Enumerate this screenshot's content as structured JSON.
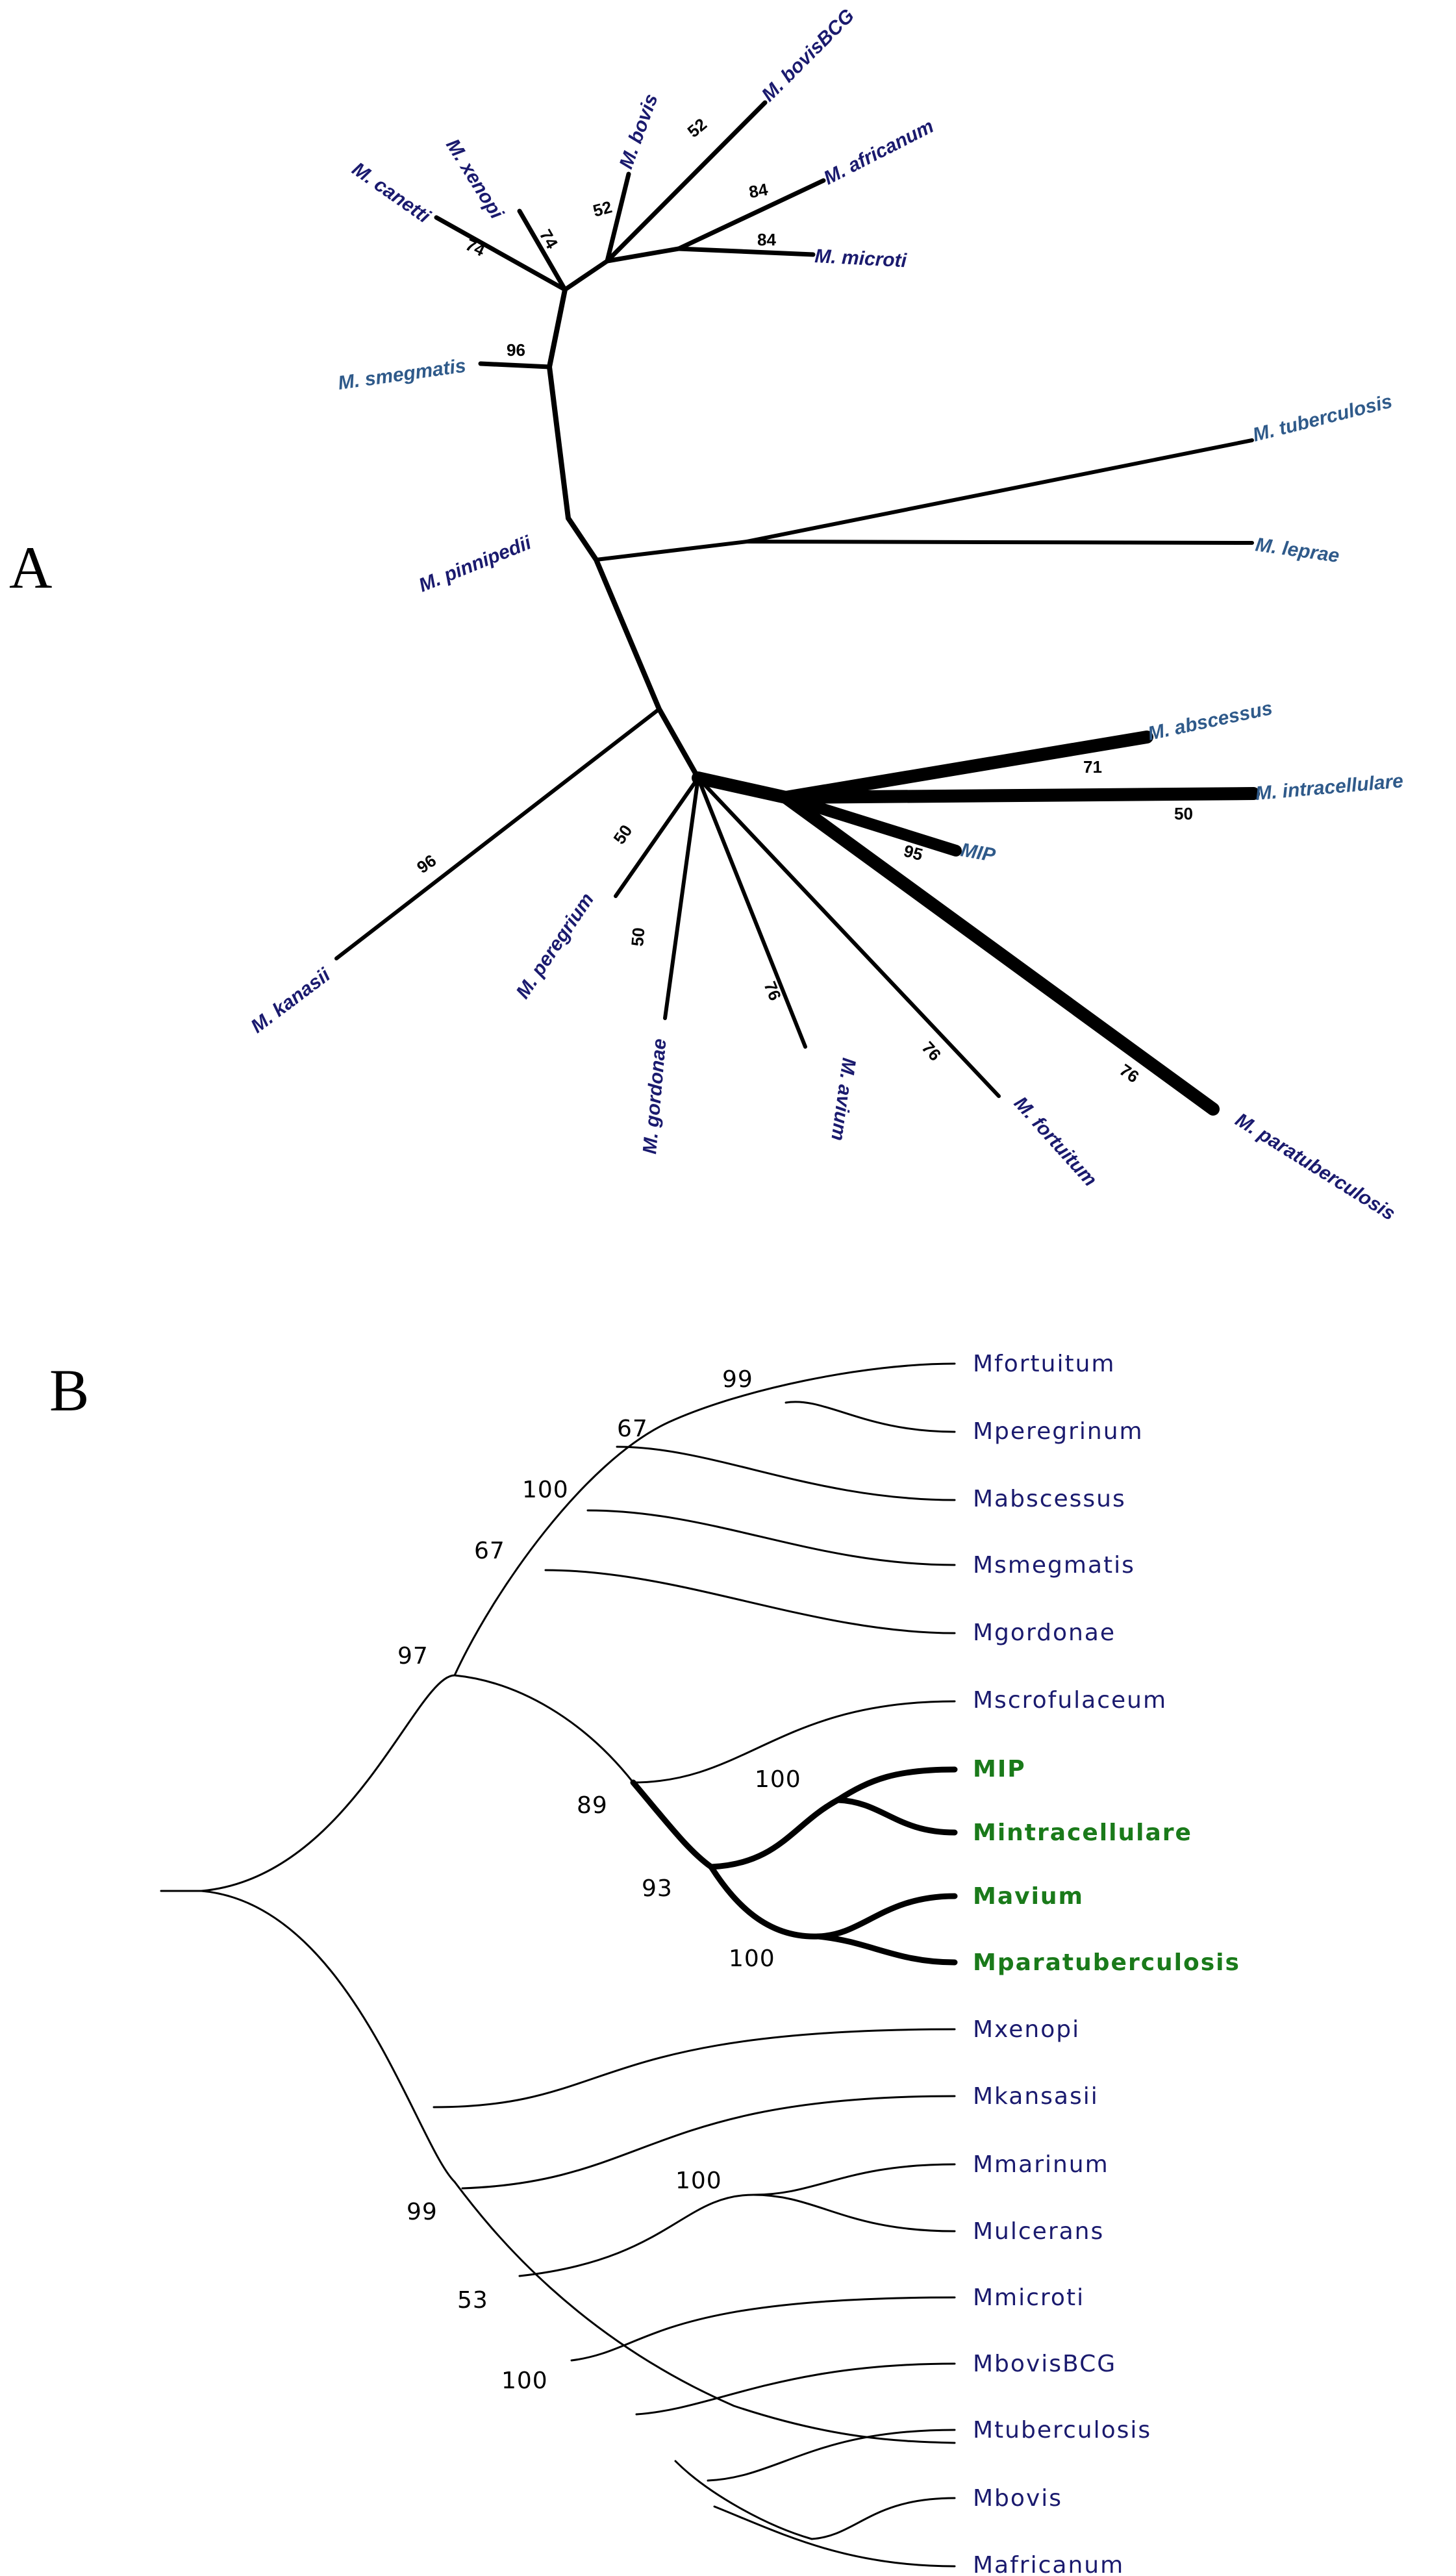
{
  "colors": {
    "dark_navy": "#1a1a6e",
    "steel_blue": "#2f5a8a",
    "green": "#1a7a1a",
    "black": "#000000"
  },
  "panelA": {
    "label": "A",
    "tips": [
      {
        "id": "canetti",
        "text": "M. canetti",
        "color": "dark_navy"
      },
      {
        "id": "xenopi",
        "text": "M. xenopi",
        "color": "dark_navy"
      },
      {
        "id": "bovis",
        "text": "M. bovis",
        "color": "dark_navy"
      },
      {
        "id": "bovisbcg",
        "text": "M. bovisBCG",
        "color": "dark_navy"
      },
      {
        "id": "africanum",
        "text": "M. africanum",
        "color": "dark_navy"
      },
      {
        "id": "microti",
        "text": "M. microti",
        "color": "dark_navy"
      },
      {
        "id": "smegmatis",
        "text": "M. smegmatis",
        "color": "steel_blue"
      },
      {
        "id": "tuberculosis",
        "text": "M. tuberculosis",
        "color": "steel_blue"
      },
      {
        "id": "pinnipedii",
        "text": "M. pinnipedii",
        "color": "dark_navy"
      },
      {
        "id": "leprae",
        "text": "M. leprae",
        "color": "steel_blue"
      },
      {
        "id": "abscessus",
        "text": "M. abscessus",
        "color": "steel_blue"
      },
      {
        "id": "intracellulare",
        "text": "M. intracellulare",
        "color": "steel_blue"
      },
      {
        "id": "mip",
        "text": "MIP",
        "color": "steel_blue"
      },
      {
        "id": "kanasii",
        "text": "M. kanasii",
        "color": "dark_navy"
      },
      {
        "id": "peregrium",
        "text": "M. peregrium",
        "color": "dark_navy"
      },
      {
        "id": "gordonae",
        "text": "M. gordonae",
        "color": "dark_navy"
      },
      {
        "id": "avium",
        "text": "M. avium",
        "color": "dark_navy"
      },
      {
        "id": "fortuitum",
        "text": "M. fortuitum",
        "color": "dark_navy"
      },
      {
        "id": "paratuberculosis",
        "text": "M. paratuberculosis",
        "color": "dark_navy"
      }
    ],
    "bootstrap": [
      {
        "id": "b74a",
        "text": "74"
      },
      {
        "id": "b74b",
        "text": "74"
      },
      {
        "id": "b52a",
        "text": "52"
      },
      {
        "id": "b52b",
        "text": "52"
      },
      {
        "id": "b84a",
        "text": "84"
      },
      {
        "id": "b84b",
        "text": "84"
      },
      {
        "id": "b96a",
        "text": "96"
      },
      {
        "id": "b71",
        "text": "71"
      },
      {
        "id": "b50a",
        "text": "50"
      },
      {
        "id": "b95",
        "text": "95"
      },
      {
        "id": "b96b",
        "text": "96"
      },
      {
        "id": "b50b",
        "text": "50"
      },
      {
        "id": "b50c",
        "text": "50"
      },
      {
        "id": "b76a",
        "text": "76"
      },
      {
        "id": "b76b",
        "text": "76"
      },
      {
        "id": "b76c",
        "text": "76"
      }
    ]
  },
  "panelB": {
    "label": "B",
    "tips": [
      {
        "text": "Mfortuitum",
        "highlight": false
      },
      {
        "text": "Mperegrinum",
        "highlight": false
      },
      {
        "text": "Mabscessus",
        "highlight": false
      },
      {
        "text": "Msmegmatis",
        "highlight": false
      },
      {
        "text": "Mgordonae",
        "highlight": false
      },
      {
        "text": "Mscrofulaceum",
        "highlight": false
      },
      {
        "text": "MIP",
        "highlight": true
      },
      {
        "text": "Mintracellulare",
        "highlight": true
      },
      {
        "text": "Mavium",
        "highlight": true
      },
      {
        "text": "Mparatuberculosis",
        "highlight": true
      },
      {
        "text": "Mxenopi",
        "highlight": false
      },
      {
        "text": "Mkansasii",
        "highlight": false
      },
      {
        "text": "Mmarinum",
        "highlight": false
      },
      {
        "text": "Mulcerans",
        "highlight": false
      },
      {
        "text": "Mmicroti",
        "highlight": false
      },
      {
        "text": "MbovisBCG",
        "highlight": false
      },
      {
        "text": "Mtuberculosis",
        "highlight": false
      },
      {
        "text": "Mbovis",
        "highlight": false
      },
      {
        "text": "Mafricanum",
        "highlight": false
      }
    ],
    "bootstrap": [
      {
        "id": "c99a",
        "text": "99"
      },
      {
        "id": "c67a",
        "text": "67"
      },
      {
        "id": "c100a",
        "text": "100"
      },
      {
        "id": "c67b",
        "text": "67"
      },
      {
        "id": "c97",
        "text": "97"
      },
      {
        "id": "c89",
        "text": "89"
      },
      {
        "id": "c100b",
        "text": "100"
      },
      {
        "id": "c93",
        "text": "93"
      },
      {
        "id": "c100c",
        "text": "100"
      },
      {
        "id": "c100d",
        "text": "100"
      },
      {
        "id": "c99b",
        "text": "99"
      },
      {
        "id": "c53",
        "text": "53"
      },
      {
        "id": "c100e",
        "text": "100"
      }
    ]
  }
}
